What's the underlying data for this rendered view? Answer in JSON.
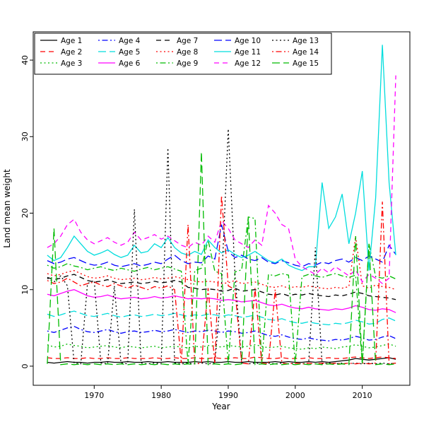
{
  "figure": {
    "background": "#ffffff"
  },
  "chart_data": {
    "type": "line",
    "title": "",
    "xlabel": "Year",
    "ylabel": "Land mean weight",
    "x_ticks": [
      1970,
      1980,
      1990,
      2000,
      2010
    ],
    "y_ticks": [
      0,
      10,
      20,
      30,
      40
    ],
    "xlim": [
      1960.9,
      2017.1
    ],
    "ylim": [
      -2.5,
      43.7
    ],
    "grid": false,
    "legend_position": "top-inside",
    "x": [
      1963,
      1964,
      1965,
      1966,
      1967,
      1968,
      1969,
      1970,
      1971,
      1972,
      1973,
      1974,
      1975,
      1976,
      1977,
      1978,
      1979,
      1980,
      1981,
      1982,
      1983,
      1984,
      1985,
      1986,
      1987,
      1988,
      1989,
      1990,
      1991,
      1992,
      1993,
      1994,
      1995,
      1996,
      1997,
      1998,
      1999,
      2000,
      2001,
      2002,
      2003,
      2004,
      2005,
      2006,
      2007,
      2008,
      2009,
      2010,
      2011,
      2012,
      2013,
      2014,
      2015
    ],
    "series": [
      {
        "name": "Age 1",
        "color": "#000000",
        "linetype": "solid",
        "values": [
          0.5,
          0.4,
          0.5,
          0.6,
          0.5,
          0.5,
          0.4,
          0.5,
          0.5,
          0.6,
          0.5,
          0.5,
          0.6,
          0.5,
          0.5,
          0.6,
          0.5,
          0.5,
          0.6,
          0.5,
          0.5,
          0.5,
          0.6,
          0.5,
          0.6,
          0.5,
          0.5,
          0.6,
          0.5,
          0.5,
          0.6,
          0.5,
          0.5,
          0.5,
          0.6,
          0.5,
          0.6,
          0.5,
          0.5,
          0.6,
          0.5,
          0.6,
          0.5,
          0.6,
          0.7,
          0.8,
          1.0,
          0.9,
          0.8,
          0.9,
          1.0,
          1.1,
          0.9
        ]
      },
      {
        "name": "Age 2",
        "color": "#ff0000",
        "linetype": "dashed",
        "values": [
          1.1,
          1.0,
          1.0,
          1.1,
          1.0,
          1.0,
          1.1,
          1.0,
          1.0,
          1.1,
          1.0,
          1.0,
          1.1,
          1.0,
          1.0,
          1.0,
          1.1,
          1.0,
          1.0,
          1.1,
          1.0,
          1.0,
          1.1,
          1.0,
          1.0,
          1.1,
          1.0,
          1.0,
          1.1,
          1.0,
          1.0,
          1.2,
          1.1,
          1.0,
          1.0,
          1.1,
          1.0,
          1.0,
          1.0,
          1.1,
          1.0,
          1.0,
          1.1,
          1.0,
          1.0,
          1.1,
          1.2,
          1.1,
          1.0,
          1.1,
          1.2,
          1.1,
          1.0
        ]
      },
      {
        "name": "Age 3",
        "color": "#00bb00",
        "linetype": "dotted",
        "values": [
          2.8,
          2.5,
          2.6,
          2.9,
          2.7,
          2.6,
          2.4,
          2.5,
          2.6,
          2.7,
          2.5,
          2.4,
          2.6,
          2.5,
          2.4,
          2.5,
          2.6,
          2.4,
          2.5,
          2.6,
          2.5,
          2.4,
          2.6,
          2.5,
          2.7,
          2.6,
          2.5,
          2.7,
          2.6,
          2.5,
          2.6,
          2.8,
          2.6,
          2.4,
          2.5,
          2.6,
          2.4,
          2.3,
          2.2,
          2.4,
          2.3,
          2.5,
          2.4,
          2.3,
          2.5,
          2.6,
          2.8,
          2.6,
          2.4,
          2.5,
          2.7,
          2.9,
          2.6
        ]
      },
      {
        "name": "Age 4",
        "color": "#0000ff",
        "linetype": "dotdash",
        "values": [
          4.6,
          4.4,
          4.7,
          5.0,
          5.2,
          4.8,
          4.5,
          4.4,
          4.6,
          4.8,
          4.5,
          4.3,
          4.5,
          4.6,
          4.4,
          4.5,
          4.7,
          4.5,
          4.6,
          4.8,
          4.6,
          4.4,
          4.6,
          4.5,
          4.7,
          4.6,
          4.4,
          4.6,
          4.5,
          4.3,
          4.4,
          4.6,
          4.3,
          4.0,
          3.9,
          4.1,
          3.8,
          3.6,
          3.5,
          3.7,
          3.5,
          3.4,
          3.3,
          3.5,
          3.4,
          3.6,
          3.9,
          3.7,
          3.4,
          3.5,
          3.8,
          4.0,
          3.6
        ]
      },
      {
        "name": "Age 5",
        "color": "#00dddd",
        "linetype": "longdash",
        "values": [
          6.8,
          6.5,
          6.7,
          7.0,
          7.2,
          6.9,
          6.6,
          6.5,
          6.7,
          6.9,
          6.6,
          6.4,
          6.6,
          6.7,
          6.5,
          6.6,
          6.8,
          6.6,
          6.7,
          6.9,
          6.7,
          6.5,
          6.7,
          6.6,
          6.8,
          6.7,
          6.5,
          6.7,
          6.6,
          6.4,
          6.5,
          6.7,
          6.4,
          6.1,
          6.0,
          6.2,
          5.9,
          5.7,
          5.6,
          5.8,
          5.6,
          5.5,
          5.4,
          5.6,
          5.5,
          5.7,
          6.0,
          5.8,
          5.5,
          5.6,
          6.1,
          6.3,
          5.9
        ]
      },
      {
        "name": "Age 6",
        "color": "#ff00ff",
        "linetype": "solid",
        "values": [
          9.4,
          9.2,
          9.5,
          9.8,
          10.0,
          9.6,
          9.2,
          9.0,
          9.1,
          9.3,
          9.0,
          8.8,
          8.9,
          9.0,
          8.8,
          8.9,
          9.1,
          8.9,
          9.0,
          9.2,
          9.0,
          8.8,
          8.9,
          8.8,
          8.9,
          8.8,
          8.6,
          8.7,
          8.6,
          8.4,
          8.5,
          8.6,
          8.3,
          8.0,
          7.9,
          8.1,
          7.8,
          7.6,
          7.5,
          7.7,
          7.5,
          7.4,
          7.3,
          7.5,
          7.4,
          7.6,
          7.9,
          7.7,
          7.4,
          7.3,
          7.5,
          7.4,
          7.0
        ]
      },
      {
        "name": "Age 7",
        "color": "#000000",
        "linetype": "dashed",
        "values": [
          11.6,
          11.3,
          11.5,
          11.8,
          12.0,
          11.6,
          11.2,
          11.0,
          11.1,
          11.3,
          11.0,
          10.8,
          10.9,
          11.0,
          10.8,
          10.9,
          11.1,
          10.9,
          11.0,
          11.2,
          11.0,
          10.3,
          10.2,
          10.0,
          10.1,
          10.0,
          9.8,
          9.9,
          10.2,
          9.8,
          9.9,
          10.0,
          9.7,
          9.4,
          9.3,
          9.5,
          9.2,
          9.4,
          9.3,
          9.5,
          9.3,
          9.2,
          9.1,
          9.3,
          9.2,
          9.4,
          9.7,
          9.5,
          9.2,
          9.1,
          9.0,
          8.9,
          8.7
        ]
      },
      {
        "name": "Age 8",
        "color": "#ff0000",
        "linetype": "dotted",
        "values": [
          12.1,
          11.8,
          12.0,
          12.3,
          12.5,
          12.1,
          11.7,
          11.5,
          11.6,
          11.8,
          11.5,
          11.3,
          11.4,
          11.5,
          11.3,
          11.4,
          11.6,
          11.4,
          11.5,
          11.7,
          11.5,
          11.3,
          11.1,
          11.0,
          11.1,
          11.0,
          10.8,
          10.9,
          11.2,
          10.8,
          10.9,
          11.0,
          10.7,
          10.4,
          10.3,
          10.5,
          10.2,
          10.4,
          10.3,
          10.5,
          10.3,
          10.2,
          10.1,
          10.3,
          10.2,
          10.4,
          17.0,
          10.5,
          10.2,
          10.6,
          10.4,
          10.3,
          10.0
        ]
      },
      {
        "name": "Age 9",
        "color": "#00bb00",
        "linetype": "dotdash",
        "values": [
          13.2,
          12.8,
          13.0,
          13.4,
          13.1,
          12.9,
          12.6,
          12.8,
          13.0,
          12.7,
          12.5,
          12.8,
          12.6,
          12.4,
          12.7,
          12.9,
          12.6,
          12.8,
          13.0,
          12.7,
          12.4,
          0.3,
          12.5,
          12.8,
          16.5,
          12.4,
          12.1,
          0.3,
          12.3,
          12.6,
          19.5,
          19.3,
          0.3,
          12.0,
          11.8,
          12.1,
          11.9,
          0.3,
          11.7,
          12.0,
          11.8,
          11.6,
          11.9,
          12.1,
          11.8,
          11.6,
          11.9,
          0.3,
          16.0,
          11.7,
          11.5,
          11.8,
          11.4
        ]
      },
      {
        "name": "Age 10",
        "color": "#0000ff",
        "linetype": "longdash",
        "values": [
          13.8,
          13.4,
          13.6,
          14.0,
          14.2,
          13.8,
          13.4,
          13.2,
          13.3,
          13.6,
          13.2,
          13.0,
          13.2,
          13.4,
          13.1,
          13.3,
          13.6,
          13.4,
          14.0,
          14.5,
          13.8,
          13.4,
          13.6,
          13.5,
          14.4,
          14.0,
          18.5,
          15.0,
          14.2,
          14.5,
          14.0,
          13.8,
          14.2,
          13.6,
          13.4,
          13.8,
          13.5,
          13.2,
          13.0,
          13.4,
          13.2,
          13.6,
          13.4,
          13.8,
          14.0,
          13.6,
          14.2,
          13.8,
          14.4,
          14.0,
          13.6,
          15.8,
          14.6
        ]
      },
      {
        "name": "Age 11",
        "color": "#00dddd",
        "linetype": "solid",
        "values": [
          14.5,
          13.8,
          14.2,
          15.5,
          17.0,
          16.0,
          15.0,
          14.5,
          14.8,
          15.2,
          14.6,
          14.2,
          14.5,
          15.8,
          14.8,
          15.0,
          16.0,
          15.5,
          16.8,
          15.5,
          14.8,
          14.5,
          15.0,
          14.6,
          16.5,
          15.5,
          14.8,
          15.2,
          14.6,
          14.2,
          14.5,
          15.0,
          14.4,
          13.8,
          13.5,
          14.0,
          13.2,
          12.8,
          12.5,
          13.0,
          13.0,
          24.0,
          18.0,
          19.5,
          22.5,
          16.0,
          20.0,
          25.5,
          12.5,
          22.0,
          42.0,
          24.0,
          14.5
        ]
      },
      {
        "name": "Age 12",
        "color": "#ff00ff",
        "linetype": "dashed",
        "values": [
          15.5,
          16.0,
          17.0,
          18.5,
          19.2,
          17.5,
          16.5,
          16.0,
          16.4,
          16.8,
          16.2,
          15.8,
          16.2,
          17.5,
          16.5,
          16.8,
          17.2,
          16.6,
          17.0,
          16.4,
          15.8,
          15.5,
          16.2,
          15.8,
          17.0,
          16.2,
          19.0,
          18.0,
          16.5,
          16.0,
          15.5,
          16.5,
          15.8,
          21.0,
          20.0,
          18.5,
          18.0,
          14.0,
          13.0,
          12.5,
          12.0,
          12.8,
          12.2,
          13.0,
          12.4,
          11.8,
          12.6,
          11.0,
          12.0,
          11.5,
          10.8,
          11.5,
          38.0
        ]
      },
      {
        "name": "Age 13",
        "color": "#000000",
        "linetype": "dotted",
        "values": [
          11.5,
          11.0,
          11.8,
          10.5,
          0.4,
          0.3,
          10.8,
          11.2,
          0.4,
          0.3,
          10.5,
          0.4,
          0.3,
          20.5,
          0.4,
          0.3,
          0.4,
          0.3,
          28.5,
          0.4,
          0.3,
          0.4,
          0.3,
          0.4,
          0.3,
          0.4,
          10.5,
          31.0,
          12.0,
          0.4,
          0.3,
          0.4,
          0.3,
          0.4,
          0.3,
          0.4,
          0.3,
          0.4,
          0.3,
          0.4,
          15.5,
          0.3,
          0.4,
          0.3,
          0.4,
          0.3,
          0.4,
          0.3,
          0.4,
          0.3,
          0.4,
          0.3,
          0.4
        ]
      },
      {
        "name": "Age 14",
        "color": "#ff0000",
        "linetype": "dotdash",
        "values": [
          11.2,
          10.8,
          11.0,
          11.5,
          11.0,
          10.5,
          10.8,
          11.0,
          10.6,
          10.4,
          10.8,
          10.5,
          10.2,
          10.6,
          10.3,
          10.0,
          10.4,
          10.2,
          10.5,
          10.0,
          0.4,
          18.5,
          0.3,
          0.4,
          10.2,
          0.3,
          22.3,
          10.5,
          10.0,
          0.4,
          0.3,
          10.2,
          0.4,
          0.3,
          10.0,
          0.4,
          0.3,
          0.4,
          0.3,
          0.4,
          0.3,
          0.4,
          0.3,
          0.4,
          0.3,
          0.4,
          0.3,
          0.4,
          0.3,
          0.4,
          21.5,
          0.3,
          0.4
        ]
      },
      {
        "name": "Age 15",
        "color": "#00bb00",
        "linetype": "longdash",
        "values": [
          0.3,
          18.0,
          0.2,
          0.3,
          0.2,
          0.3,
          0.2,
          0.3,
          0.2,
          0.3,
          0.2,
          0.3,
          0.2,
          0.3,
          0.2,
          0.3,
          0.2,
          0.3,
          0.2,
          0.3,
          0.2,
          0.3,
          0.2,
          28.0,
          0.2,
          0.3,
          0.2,
          0.3,
          0.2,
          0.3,
          19.5,
          0.2,
          0.3,
          0.2,
          0.3,
          0.2,
          0.3,
          0.2,
          0.3,
          0.2,
          0.3,
          0.2,
          0.3,
          0.2,
          0.3,
          0.2,
          17.0,
          0.3,
          16.0,
          0.2,
          0.3,
          0.2,
          0.3
        ]
      }
    ]
  }
}
